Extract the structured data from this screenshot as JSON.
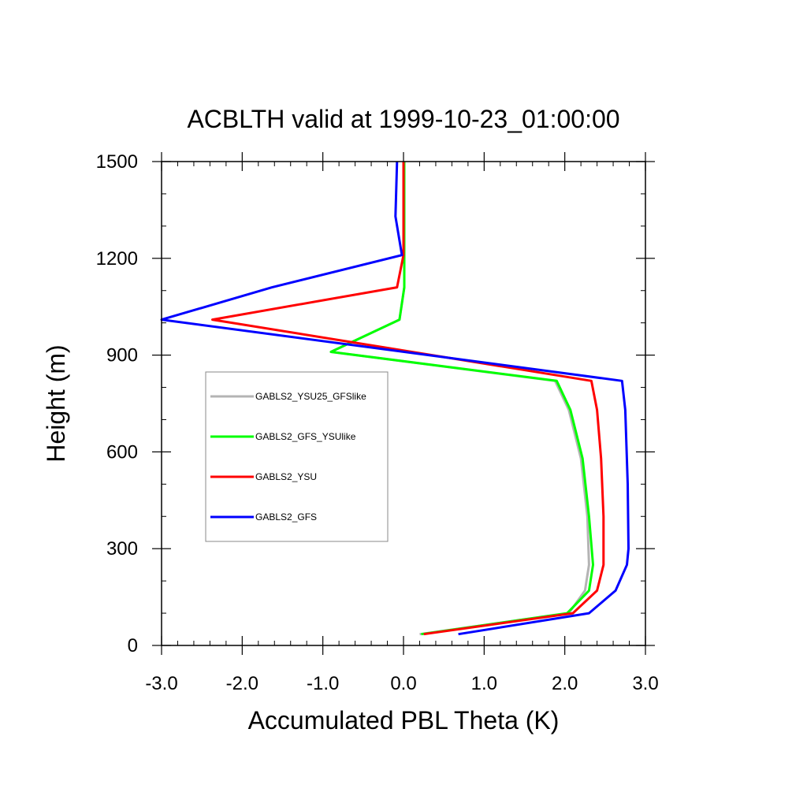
{
  "chart_data": {
    "type": "line",
    "title": "ACBLTH valid at 1999-10-23_01:00:00",
    "xlabel": "Accumulated PBL Theta (K)",
    "ylabel": "Height (m)",
    "xlim": [
      -3.0,
      3.0
    ],
    "ylim": [
      0,
      1500
    ],
    "x_ticks": [
      "-3.0",
      "-2.0",
      "-1.0",
      "0.0",
      "1.0",
      "2.0",
      "3.0"
    ],
    "y_ticks": [
      "0",
      "300",
      "600",
      "900",
      "1200",
      "1500"
    ],
    "x_tick_values": [
      -3.0,
      -2.0,
      -1.0,
      0.0,
      1.0,
      2.0,
      3.0
    ],
    "y_tick_values": [
      0,
      300,
      600,
      900,
      1200,
      1500
    ],
    "grid": false,
    "legend_position": "left-middle",
    "series": [
      {
        "name": "GABLS2_YSU25_GFSlike",
        "color": "#b4b4b4",
        "points": [
          [
            0.2,
            35
          ],
          [
            2.05,
            100
          ],
          [
            2.25,
            170
          ],
          [
            2.3,
            250
          ],
          [
            2.28,
            400
          ],
          [
            2.2,
            580
          ],
          [
            2.05,
            730
          ],
          [
            1.88,
            820
          ],
          [
            -0.9,
            910
          ],
          [
            -0.05,
            1010
          ],
          [
            0.01,
            1110
          ],
          [
            0.01,
            1210
          ],
          [
            0.01,
            1330
          ],
          [
            0.01,
            1500
          ]
        ]
      },
      {
        "name": "GABLS2_GFS_YSUlike",
        "color": "#00ff00",
        "points": [
          [
            0.22,
            35
          ],
          [
            2.03,
            100
          ],
          [
            2.3,
            170
          ],
          [
            2.35,
            250
          ],
          [
            2.3,
            400
          ],
          [
            2.22,
            580
          ],
          [
            2.07,
            730
          ],
          [
            1.9,
            820
          ],
          [
            -0.9,
            910
          ],
          [
            -0.05,
            1010
          ],
          [
            0.01,
            1110
          ],
          [
            0.01,
            1210
          ],
          [
            0.01,
            1330
          ],
          [
            0.01,
            1500
          ]
        ]
      },
      {
        "name": "GABLS2_YSU",
        "color": "#ff0000",
        "points": [
          [
            0.25,
            35
          ],
          [
            2.1,
            100
          ],
          [
            2.4,
            170
          ],
          [
            2.48,
            250
          ],
          [
            2.48,
            400
          ],
          [
            2.45,
            580
          ],
          [
            2.4,
            730
          ],
          [
            2.33,
            820
          ],
          [
            -2.37,
            1010
          ],
          [
            -0.08,
            1110
          ],
          [
            0.0,
            1210
          ],
          [
            0.0,
            1330
          ],
          [
            0.0,
            1500
          ]
        ]
      },
      {
        "name": "GABLS2_GFS",
        "color": "#0000ff",
        "points": [
          [
            0.68,
            35
          ],
          [
            2.3,
            100
          ],
          [
            2.63,
            170
          ],
          [
            2.77,
            250
          ],
          [
            2.79,
            300
          ],
          [
            2.78,
            500
          ],
          [
            2.75,
            730
          ],
          [
            2.71,
            820
          ],
          [
            -3.0,
            1010
          ],
          [
            -1.63,
            1110
          ],
          [
            -0.02,
            1210
          ],
          [
            -0.1,
            1330
          ],
          [
            -0.08,
            1500
          ]
        ]
      }
    ]
  }
}
